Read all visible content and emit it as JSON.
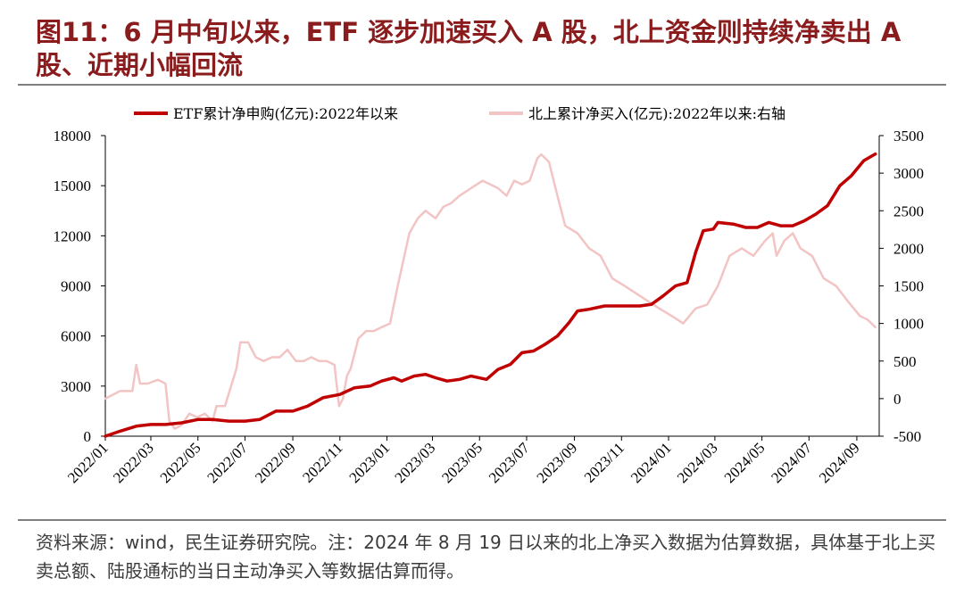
{
  "title": "图11：6 月中旬以来，ETF 逐步加速买入 A 股，北上资金则持续净卖出 A 股、近期小幅回流",
  "source": "资料来源：wind，民生证券研究院。注：2024 年 8 月 19 日以来的北上净买入数据为估算数据，具体基于北上买卖总额、陆股通标的当日主动净买入等数据估算而得。",
  "colors": {
    "etf": "#c00000",
    "north": "#f2c4c4",
    "title": "#8a1c1e",
    "rule": "#7f7f7f"
  },
  "chart_data": {
    "type": "line",
    "legend_position": "top",
    "grid": false,
    "x_ticks": [
      "2022/01",
      "2022/03",
      "2022/05",
      "2022/07",
      "2022/09",
      "2022/11",
      "2023/01",
      "2023/03",
      "2023/05",
      "2023/07",
      "2023/09",
      "2023/11",
      "2024/01",
      "2024/03",
      "2024/05",
      "2024/07",
      "2024/09"
    ],
    "y_left": {
      "ylim": [
        0,
        18000
      ],
      "ticks": [
        "0",
        "3000",
        "6000",
        "9000",
        "12000",
        "15000",
        "18000"
      ]
    },
    "y_right": {
      "ylim": [
        -500,
        3500
      ],
      "ticks": [
        "-500",
        "0",
        "500",
        "1000",
        "1500",
        "2000",
        "2500",
        "3000",
        "3500"
      ]
    },
    "series": [
      {
        "name": "ETF累计净申购(亿元):2022年以来",
        "axis": "left",
        "points": [
          [
            "2022-01-01",
            0
          ],
          [
            "2022-01-20",
            300
          ],
          [
            "2022-02-10",
            600
          ],
          [
            "2022-03-01",
            700
          ],
          [
            "2022-03-20",
            700
          ],
          [
            "2022-04-10",
            800
          ],
          [
            "2022-05-01",
            1000
          ],
          [
            "2022-05-20",
            1000
          ],
          [
            "2022-06-10",
            900
          ],
          [
            "2022-07-01",
            900
          ],
          [
            "2022-07-20",
            1000
          ],
          [
            "2022-08-10",
            1500
          ],
          [
            "2022-09-01",
            1500
          ],
          [
            "2022-09-20",
            1800
          ],
          [
            "2022-10-10",
            2300
          ],
          [
            "2022-11-01",
            2500
          ],
          [
            "2022-11-20",
            2900
          ],
          [
            "2022-12-10",
            3000
          ],
          [
            "2022-12-25",
            3300
          ],
          [
            "2023-01-10",
            3500
          ],
          [
            "2023-01-20",
            3300
          ],
          [
            "2023-02-05",
            3600
          ],
          [
            "2023-02-20",
            3700
          ],
          [
            "2023-03-05",
            3500
          ],
          [
            "2023-03-20",
            3300
          ],
          [
            "2023-04-05",
            3400
          ],
          [
            "2023-04-20",
            3600
          ],
          [
            "2023-05-10",
            3400
          ],
          [
            "2023-05-25",
            4000
          ],
          [
            "2023-06-10",
            4300
          ],
          [
            "2023-06-25",
            5000
          ],
          [
            "2023-07-10",
            5100
          ],
          [
            "2023-07-25",
            5500
          ],
          [
            "2023-08-10",
            6000
          ],
          [
            "2023-08-25",
            6800
          ],
          [
            "2023-09-05",
            7500
          ],
          [
            "2023-09-20",
            7600
          ],
          [
            "2023-10-10",
            7800
          ],
          [
            "2023-10-25",
            7800
          ],
          [
            "2023-11-10",
            7800
          ],
          [
            "2023-11-25",
            7800
          ],
          [
            "2023-12-10",
            7900
          ],
          [
            "2023-12-25",
            8400
          ],
          [
            "2024-01-10",
            9000
          ],
          [
            "2024-01-25",
            9200
          ],
          [
            "2024-02-05",
            11000
          ],
          [
            "2024-02-15",
            12300
          ],
          [
            "2024-02-28",
            12400
          ],
          [
            "2024-03-05",
            12800
          ],
          [
            "2024-03-25",
            12700
          ],
          [
            "2024-04-10",
            12500
          ],
          [
            "2024-04-25",
            12500
          ],
          [
            "2024-05-10",
            12800
          ],
          [
            "2024-05-25",
            12600
          ],
          [
            "2024-06-10",
            12600
          ],
          [
            "2024-06-25",
            12900
          ],
          [
            "2024-07-10",
            13300
          ],
          [
            "2024-07-25",
            13800
          ],
          [
            "2024-08-10",
            15000
          ],
          [
            "2024-08-25",
            15600
          ],
          [
            "2024-09-10",
            16500
          ],
          [
            "2024-09-25",
            16900
          ]
        ]
      },
      {
        "name": "北上累计净买入(亿元):2022年以来:右轴",
        "axis": "right",
        "points": [
          [
            "2022-01-01",
            0
          ],
          [
            "2022-01-20",
            100
          ],
          [
            "2022-02-05",
            100
          ],
          [
            "2022-02-10",
            450
          ],
          [
            "2022-02-15",
            200
          ],
          [
            "2022-02-25",
            200
          ],
          [
            "2022-03-10",
            250
          ],
          [
            "2022-03-20",
            200
          ],
          [
            "2022-03-25",
            -300
          ],
          [
            "2022-04-01",
            -400
          ],
          [
            "2022-04-10",
            -350
          ],
          [
            "2022-04-20",
            -200
          ],
          [
            "2022-04-30",
            -250
          ],
          [
            "2022-05-10",
            -200
          ],
          [
            "2022-05-20",
            -300
          ],
          [
            "2022-05-25",
            -100
          ],
          [
            "2022-06-05",
            -100
          ],
          [
            "2022-06-20",
            400
          ],
          [
            "2022-06-25",
            750
          ],
          [
            "2022-07-05",
            750
          ],
          [
            "2022-07-15",
            550
          ],
          [
            "2022-07-25",
            500
          ],
          [
            "2022-08-05",
            550
          ],
          [
            "2022-08-15",
            550
          ],
          [
            "2022-08-25",
            650
          ],
          [
            "2022-09-05",
            500
          ],
          [
            "2022-09-15",
            500
          ],
          [
            "2022-09-25",
            550
          ],
          [
            "2022-10-05",
            500
          ],
          [
            "2022-10-15",
            500
          ],
          [
            "2022-10-25",
            450
          ],
          [
            "2022-10-31",
            -100
          ],
          [
            "2022-11-05",
            0
          ],
          [
            "2022-11-10",
            300
          ],
          [
            "2022-11-15",
            400
          ],
          [
            "2022-11-25",
            800
          ],
          [
            "2022-12-05",
            900
          ],
          [
            "2022-12-15",
            900
          ],
          [
            "2022-12-25",
            950
          ],
          [
            "2023-01-05",
            1000
          ],
          [
            "2023-01-15",
            1500
          ],
          [
            "2023-01-30",
            2200
          ],
          [
            "2023-02-10",
            2400
          ],
          [
            "2023-02-20",
            2500
          ],
          [
            "2023-03-05",
            2400
          ],
          [
            "2023-03-15",
            2550
          ],
          [
            "2023-03-25",
            2600
          ],
          [
            "2023-04-05",
            2700
          ],
          [
            "2023-04-20",
            2800
          ],
          [
            "2023-05-05",
            2900
          ],
          [
            "2023-05-15",
            2850
          ],
          [
            "2023-05-25",
            2800
          ],
          [
            "2023-06-05",
            2700
          ],
          [
            "2023-06-15",
            2900
          ],
          [
            "2023-06-25",
            2850
          ],
          [
            "2023-07-05",
            2900
          ],
          [
            "2023-07-15",
            3200
          ],
          [
            "2023-07-20",
            3250
          ],
          [
            "2023-07-30",
            3150
          ],
          [
            "2023-08-10",
            2700
          ],
          [
            "2023-08-20",
            2300
          ],
          [
            "2023-09-05",
            2200
          ],
          [
            "2023-09-20",
            2000
          ],
          [
            "2023-10-05",
            1900
          ],
          [
            "2023-10-20",
            1600
          ],
          [
            "2023-11-05",
            1500
          ],
          [
            "2023-11-20",
            1400
          ],
          [
            "2023-12-05",
            1300
          ],
          [
            "2023-12-20",
            1200
          ],
          [
            "2024-01-05",
            1100
          ],
          [
            "2024-01-20",
            1000
          ],
          [
            "2024-02-05",
            1200
          ],
          [
            "2024-02-20",
            1250
          ],
          [
            "2024-03-05",
            1500
          ],
          [
            "2024-03-20",
            1900
          ],
          [
            "2024-04-05",
            2000
          ],
          [
            "2024-04-20",
            1900
          ],
          [
            "2024-05-05",
            2100
          ],
          [
            "2024-05-15",
            2200
          ],
          [
            "2024-05-20",
            1900
          ],
          [
            "2024-05-30",
            2100
          ],
          [
            "2024-06-10",
            2200
          ],
          [
            "2024-06-20",
            2000
          ],
          [
            "2024-07-05",
            1900
          ],
          [
            "2024-07-20",
            1600
          ],
          [
            "2024-08-05",
            1500
          ],
          [
            "2024-08-20",
            1300
          ],
          [
            "2024-09-05",
            1100
          ],
          [
            "2024-09-15",
            1050
          ],
          [
            "2024-09-25",
            950
          ]
        ]
      }
    ]
  }
}
